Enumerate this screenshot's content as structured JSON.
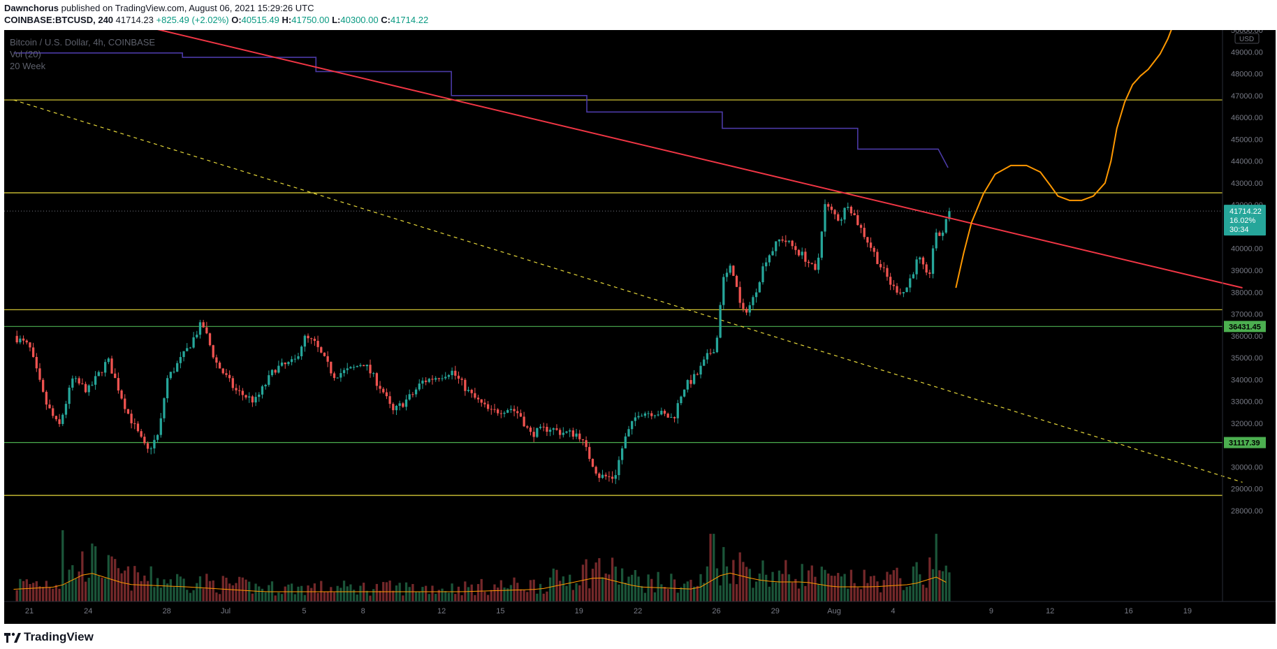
{
  "header": {
    "author": "Dawnchorus",
    "published": "published on TradingView.com, August 06, 2021 15:29:26 UTC",
    "symbol": "COINBASE:BTCUSD, 240",
    "last": "41714.23",
    "change": "+825.49 (+2.02%)",
    "o_label": "O:",
    "o_value": "40515.49",
    "h_label": "H:",
    "h_value": "41750.00",
    "l_label": "L:",
    "l_value": "40300.00",
    "c_label": "C:",
    "c_value": "41714.22"
  },
  "legend": {
    "title": "Bitcoin / U.S. Dollar, 4h, COINBASE",
    "vol": "Vol (20)",
    "ma": "20 Week"
  },
  "footer": {
    "brand": "TradingView",
    "logo_icon": "tradingview-logo-icon"
  },
  "colors": {
    "background": "#000000",
    "up": "#26a69a",
    "down": "#ef5350",
    "trendline": "#f23645",
    "level": "#e6d83a",
    "support": "#4caf50",
    "ma20w": "#4b3aa6",
    "projection": "#ff9800"
  },
  "chart_data": {
    "type": "candlestick",
    "title": "Bitcoin / U.S. Dollar, 4h, COINBASE",
    "currency_label": "USD",
    "ylim": [
      27500,
      50500
    ],
    "y_ticks": [
      "28000.00",
      "29000.00",
      "30000.00",
      "31000.00",
      "32000.00",
      "33000.00",
      "34000.00",
      "35000.00",
      "36000.00",
      "37000.00",
      "38000.00",
      "39000.00",
      "40000.00",
      "42000.00",
      "43000.00",
      "44000.00",
      "45000.00",
      "46000.00",
      "47000.00",
      "48000.00",
      "49000.00",
      "50000.00"
    ],
    "x_ticks": [
      {
        "label": "21",
        "day": 0
      },
      {
        "label": "24",
        "day": 3
      },
      {
        "label": "28",
        "day": 7
      },
      {
        "label": "Jul",
        "day": 10
      },
      {
        "label": "5",
        "day": 14
      },
      {
        "label": "8",
        "day": 17
      },
      {
        "label": "12",
        "day": 21
      },
      {
        "label": "15",
        "day": 24
      },
      {
        "label": "19",
        "day": 28
      },
      {
        "label": "22",
        "day": 31
      },
      {
        "label": "26",
        "day": 35
      },
      {
        "label": "29",
        "day": 38
      },
      {
        "label": "Aug",
        "day": 41
      },
      {
        "label": "4",
        "day": 44
      },
      {
        "label": "9",
        "day": 49
      },
      {
        "label": "12",
        "day": 52
      },
      {
        "label": "16",
        "day": 56
      },
      {
        "label": "19",
        "day": 59
      }
    ],
    "price_path": [
      [
        -0.8,
        36000
      ],
      [
        0,
        35500
      ],
      [
        0.8,
        33000
      ],
      [
        1.5,
        31800
      ],
      [
        2.2,
        34000
      ],
      [
        3,
        33500
      ],
      [
        4,
        34900
      ],
      [
        5,
        32500
      ],
      [
        6,
        30700
      ],
      [
        6.6,
        31500
      ],
      [
        7,
        34000
      ],
      [
        8,
        35300
      ],
      [
        8.8,
        36600
      ],
      [
        9.5,
        34800
      ],
      [
        10.5,
        33500
      ],
      [
        11.5,
        33000
      ],
      [
        12.5,
        34500
      ],
      [
        13.5,
        34800
      ],
      [
        14,
        35900
      ],
      [
        14.5,
        35700
      ],
      [
        15.5,
        34200
      ],
      [
        16.5,
        34500
      ],
      [
        17,
        34800
      ],
      [
        18,
        33500
      ],
      [
        18.5,
        32500
      ],
      [
        19.5,
        33300
      ],
      [
        20,
        33900
      ],
      [
        21,
        34200
      ],
      [
        21.5,
        34400
      ],
      [
        22.5,
        33300
      ],
      [
        23.5,
        32500
      ],
      [
        24.5,
        32700
      ],
      [
        25,
        32400
      ],
      [
        25.5,
        31500
      ],
      [
        26.5,
        31800
      ],
      [
        27,
        31600
      ],
      [
        28,
        31500
      ],
      [
        28.4,
        30700
      ],
      [
        29,
        29600
      ],
      [
        29.8,
        29500
      ],
      [
        30.3,
        31200
      ],
      [
        31,
        32500
      ],
      [
        32,
        32500
      ],
      [
        32.8,
        32200
      ],
      [
        33.3,
        33600
      ],
      [
        34,
        34200
      ],
      [
        34.5,
        35000
      ],
      [
        35,
        35600
      ],
      [
        35.3,
        38500
      ],
      [
        35.8,
        39200
      ],
      [
        36.3,
        37000
      ],
      [
        36.8,
        37500
      ],
      [
        37.5,
        39500
      ],
      [
        38.3,
        40500
      ],
      [
        39,
        40000
      ],
      [
        39.6,
        39500
      ],
      [
        40.1,
        38800
      ],
      [
        40.5,
        42000
      ],
      [
        41.3,
        41300
      ],
      [
        41.7,
        42100
      ],
      [
        42.3,
        41000
      ],
      [
        42.8,
        40200
      ],
      [
        43.3,
        39300
      ],
      [
        44,
        38200
      ],
      [
        44.6,
        38000
      ],
      [
        45.3,
        39600
      ],
      [
        45.8,
        38500
      ],
      [
        46.1,
        40500
      ],
      [
        46.5,
        40700
      ],
      [
        46.9,
        41700
      ]
    ],
    "volume_profile": [
      [
        -0.8,
        0.25
      ],
      [
        1.5,
        0.3
      ],
      [
        3,
        0.6
      ],
      [
        5,
        0.35
      ],
      [
        8,
        0.3
      ],
      [
        12,
        0.2
      ],
      [
        17,
        0.2
      ],
      [
        22,
        0.2
      ],
      [
        26,
        0.25
      ],
      [
        29,
        0.5
      ],
      [
        31,
        0.3
      ],
      [
        34,
        0.25
      ],
      [
        35.5,
        0.6
      ],
      [
        37,
        0.45
      ],
      [
        38,
        0.4
      ],
      [
        39.5,
        0.4
      ],
      [
        41,
        0.3
      ],
      [
        43,
        0.3
      ],
      [
        45,
        0.35
      ],
      [
        46.2,
        0.5
      ],
      [
        46.9,
        0.35
      ]
    ],
    "volume_spikes": [
      [
        1.7,
        1.0
      ],
      [
        34.8,
        0.95
      ],
      [
        46.2,
        0.95
      ]
    ],
    "ma_20week": [
      [
        -0.8,
        48950
      ],
      [
        7.8,
        48950
      ],
      [
        7.8,
        48750
      ],
      [
        14.6,
        48750
      ],
      [
        14.6,
        48100
      ],
      [
        21.5,
        48100
      ],
      [
        21.5,
        47000
      ],
      [
        28.4,
        47000
      ],
      [
        28.4,
        46250
      ],
      [
        35.3,
        46250
      ],
      [
        35.3,
        45500
      ],
      [
        42.2,
        45500
      ],
      [
        42.2,
        44550
      ],
      [
        46.3,
        44550
      ],
      [
        46.8,
        43700
      ]
    ],
    "trendline": {
      "from": [
        4.8,
        50400
      ],
      "to": [
        61.8,
        38200
      ]
    },
    "dashed_line": {
      "from": [
        -0.8,
        46800
      ],
      "to": [
        61.8,
        29300
      ]
    },
    "horizontal_levels": [
      {
        "price": 46800,
        "color": "level"
      },
      {
        "price": 42550,
        "color": "level"
      },
      {
        "price": 37200,
        "color": "level"
      },
      {
        "price": 36431.45,
        "color": "support",
        "label": "36431.45"
      },
      {
        "price": 31117.39,
        "color": "support",
        "label": "31117.39"
      },
      {
        "price": 28700,
        "color": "level"
      }
    ],
    "projection_path": [
      [
        47.2,
        38200
      ],
      [
        47.6,
        39800
      ],
      [
        48,
        41200
      ],
      [
        48.6,
        42500
      ],
      [
        49.2,
        43400
      ],
      [
        50,
        43800
      ],
      [
        50.8,
        43800
      ],
      [
        51.5,
        43500
      ],
      [
        52,
        42900
      ],
      [
        52.4,
        42400
      ],
      [
        53,
        42200
      ],
      [
        53.6,
        42200
      ],
      [
        54.2,
        42400
      ],
      [
        54.8,
        43000
      ],
      [
        55.1,
        44000
      ],
      [
        55.4,
        45500
      ],
      [
        55.8,
        46700
      ],
      [
        56.2,
        47500
      ],
      [
        56.6,
        47900
      ],
      [
        57,
        48200
      ],
      [
        57.6,
        48900
      ],
      [
        58,
        49600
      ],
      [
        58.3,
        50300
      ]
    ],
    "last_price": {
      "price": 41714.22,
      "label": "41714.22",
      "change": "16.02%",
      "countdown": "30:34"
    }
  }
}
